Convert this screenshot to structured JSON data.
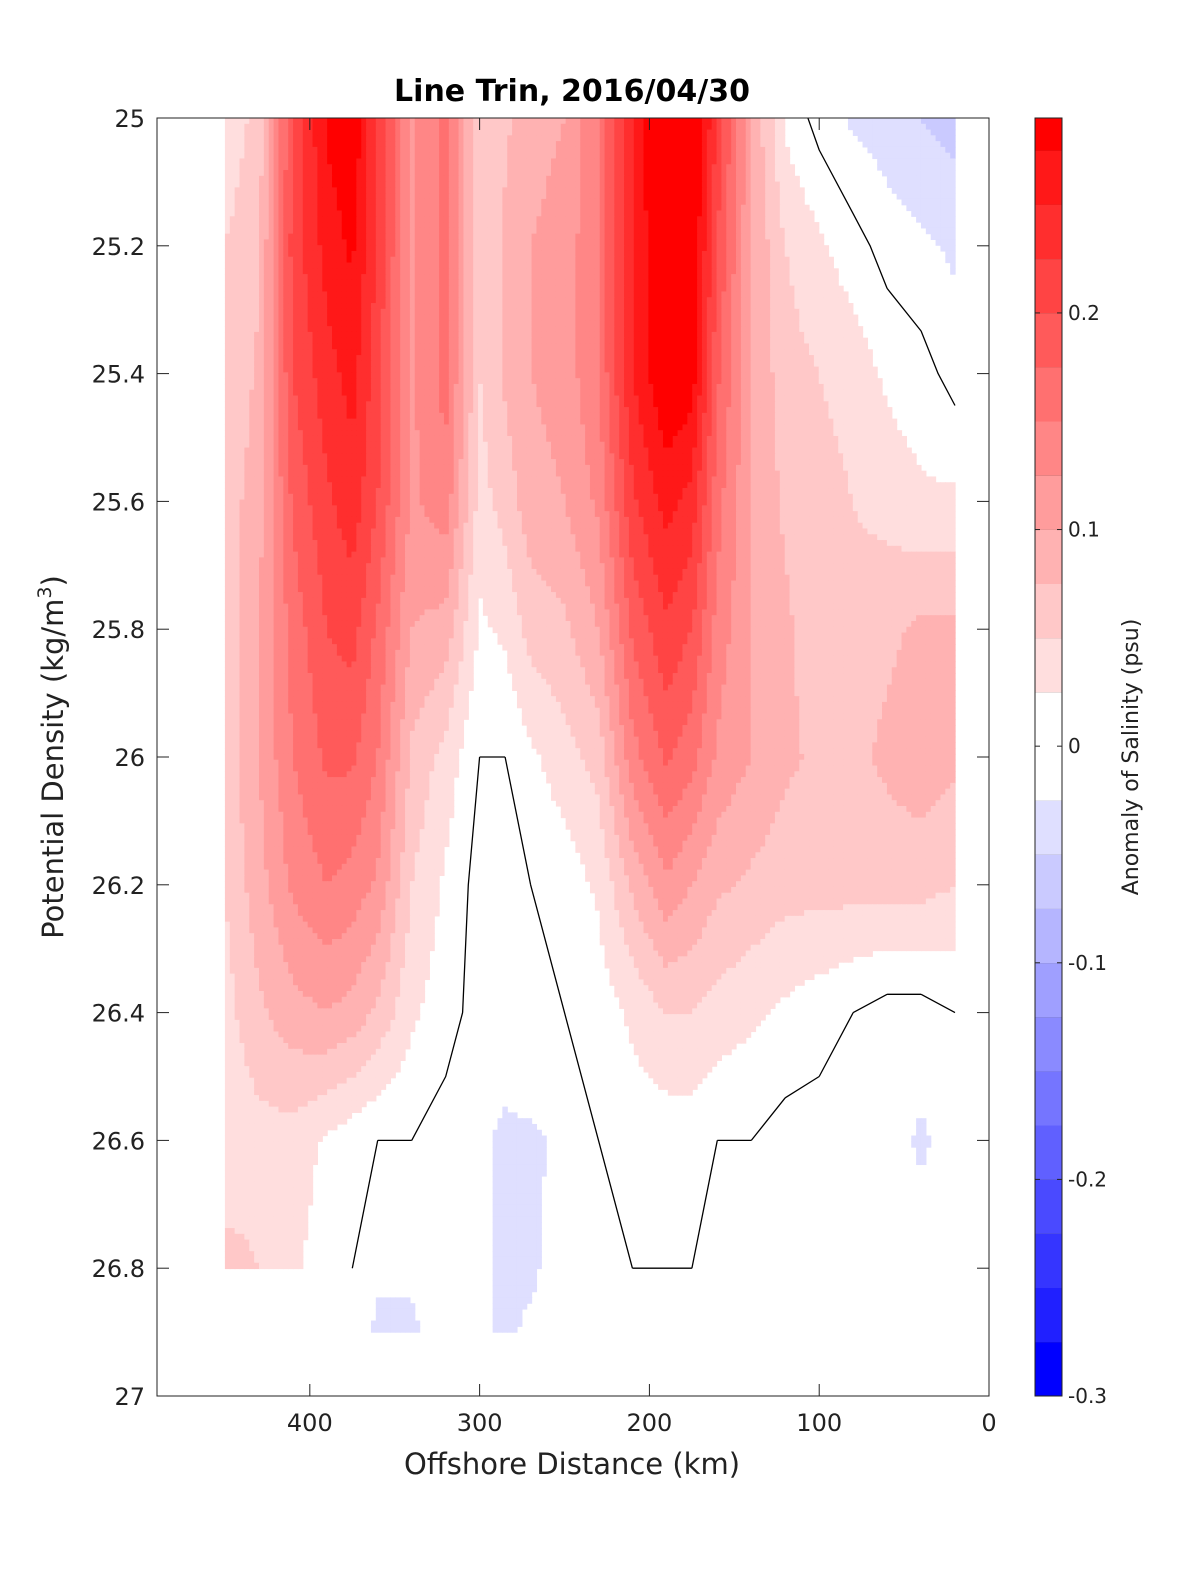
{
  "chart_data": {
    "type": "heatmap",
    "subtype": "filled-contour",
    "title": "Line Trin, 2016/04/30",
    "xlabel": "Offshore Distance (km)",
    "ylabel_main": "Potential Density (kg/m",
    "ylabel_sup": "3",
    "ylabel_end": ")",
    "xlim": [
      490,
      0
    ],
    "ylim": [
      27,
      25
    ],
    "x_reversed": true,
    "y_reversed": true,
    "xticks": [
      400,
      300,
      200,
      100,
      0
    ],
    "xtick_labels": [
      "400",
      "300",
      "200",
      "100",
      "0"
    ],
    "yticks": [
      25,
      25.2,
      25.4,
      25.6,
      25.8,
      26,
      26.2,
      26.4,
      26.6,
      26.8,
      27
    ],
    "ytick_labels": [
      "25",
      "25.2",
      "25.4",
      "25.6",
      "25.8",
      "26",
      "26.2",
      "26.4",
      "26.6",
      "26.8",
      "27"
    ],
    "colorbar": {
      "label": "Anomaly of Salinity (psu)",
      "range": [
        -0.3,
        0.29
      ],
      "ticks": [
        -0.3,
        -0.2,
        -0.1,
        0,
        0.1,
        0.2
      ],
      "tick_labels": [
        "-0.3",
        "-0.2",
        "-0.1",
        "0",
        "0.1",
        "0.2"
      ],
      "colormap": "blue-white-red",
      "neg_color": "#0000ff",
      "pos_color": "#ff0000"
    },
    "contour_levels": [
      -0.275,
      -0.25,
      -0.225,
      -0.2,
      -0.175,
      -0.15,
      -0.125,
      -0.1,
      -0.075,
      -0.05,
      -0.025,
      0.025,
      0.05,
      0.075,
      0.1,
      0.125,
      0.15,
      0.175,
      0.2,
      0.225,
      0.25,
      0.275
    ],
    "grid": {
      "x": [
        450,
        430,
        410,
        390,
        375,
        360,
        340,
        320,
        300,
        285,
        270,
        250,
        230,
        210,
        190,
        175,
        160,
        140,
        120,
        100,
        80,
        60,
        40,
        20
      ],
      "y": [
        25.0,
        25.2,
        25.4,
        25.6,
        25.8,
        26.0,
        26.2,
        26.4,
        26.6,
        26.8,
        26.9
      ]
    },
    "rows": [
      [
        0.03,
        0.06,
        0.2,
        0.28,
        0.3,
        0.22,
        0.12,
        0.16,
        0.05,
        0.07,
        0.09,
        0.1,
        0.15,
        0.25,
        0.32,
        0.32,
        0.22,
        0.1,
        0.02,
        -0.01,
        -0.03,
        -0.04,
        -0.05,
        -0.06
      ],
      [
        0.05,
        0.07,
        0.21,
        0.26,
        0.28,
        0.22,
        0.12,
        0.16,
        0.05,
        0.08,
        0.1,
        0.11,
        0.15,
        0.25,
        0.31,
        0.3,
        0.2,
        0.1,
        0.05,
        0.03,
        0.01,
        -0.01,
        -0.02,
        -0.03
      ],
      [
        0.05,
        0.08,
        0.2,
        0.24,
        0.26,
        0.21,
        0.12,
        0.16,
        0.05,
        0.08,
        0.1,
        0.11,
        0.15,
        0.25,
        0.3,
        0.29,
        0.18,
        0.1,
        0.06,
        0.05,
        0.04,
        0.02,
        0.01,
        -0.01
      ],
      [
        0.06,
        0.09,
        0.18,
        0.22,
        0.24,
        0.2,
        0.12,
        0.14,
        0.04,
        0.06,
        0.09,
        0.1,
        0.13,
        0.22,
        0.26,
        0.24,
        0.16,
        0.1,
        0.07,
        0.06,
        0.05,
        0.04,
        0.03,
        0.03
      ],
      [
        0.06,
        0.1,
        0.16,
        0.2,
        0.21,
        0.17,
        0.1,
        0.09,
        0.02,
        0.03,
        0.06,
        0.07,
        0.1,
        0.18,
        0.22,
        0.2,
        0.14,
        0.1,
        0.08,
        0.06,
        0.06,
        0.07,
        0.08,
        0.08
      ],
      [
        0.06,
        0.1,
        0.15,
        0.18,
        0.18,
        0.15,
        0.07,
        0.04,
        0.0,
        0.0,
        0.02,
        0.04,
        0.06,
        0.14,
        0.18,
        0.16,
        0.12,
        0.1,
        0.08,
        0.07,
        0.07,
        0.08,
        0.09,
        0.08
      ],
      [
        0.05,
        0.09,
        0.13,
        0.15,
        0.14,
        0.12,
        0.05,
        0.02,
        -0.01,
        -0.01,
        0.0,
        0.01,
        0.03,
        0.08,
        0.12,
        0.1,
        0.08,
        0.07,
        0.06,
        0.06,
        0.06,
        0.06,
        0.06,
        0.05
      ],
      [
        0.04,
        0.07,
        0.09,
        0.1,
        0.09,
        0.07,
        0.03,
        0.01,
        -0.01,
        -0.01,
        0.0,
        0.0,
        0.01,
        0.03,
        0.05,
        0.05,
        0.04,
        0.03,
        0.02,
        0.01,
        0.0,
        -0.01,
        -0.01,
        0.0
      ],
      [
        0.03,
        0.04,
        0.04,
        0.02,
        0.01,
        0.0,
        0.0,
        -0.01,
        -0.02,
        -0.03,
        -0.03,
        -0.02,
        0.0,
        0.01,
        0.01,
        0.01,
        0.0,
        0.0,
        -0.01,
        -0.01,
        -0.01,
        -0.01,
        -0.03,
        -0.01
      ],
      [
        0.06,
        0.05,
        0.03,
        0.01,
        0.0,
        -0.02,
        -0.02,
        -0.01,
        -0.02,
        -0.03,
        -0.03,
        -0.01,
        0.0,
        0.0,
        0.0,
        0.0,
        0.0,
        0.0,
        -0.01,
        -0.01,
        -0.01,
        -0.01,
        -0.01,
        -0.01
      ],
      [
        null,
        null,
        null,
        null,
        -0.01,
        -0.03,
        -0.03,
        -0.01,
        -0.02,
        -0.03,
        -0.02,
        -0.01,
        0.0,
        0.0,
        0.0,
        0.0,
        0.0,
        0.0,
        -0.01,
        -0.01,
        -0.01,
        -0.01,
        -0.01,
        -0.01
      ]
    ]
  }
}
